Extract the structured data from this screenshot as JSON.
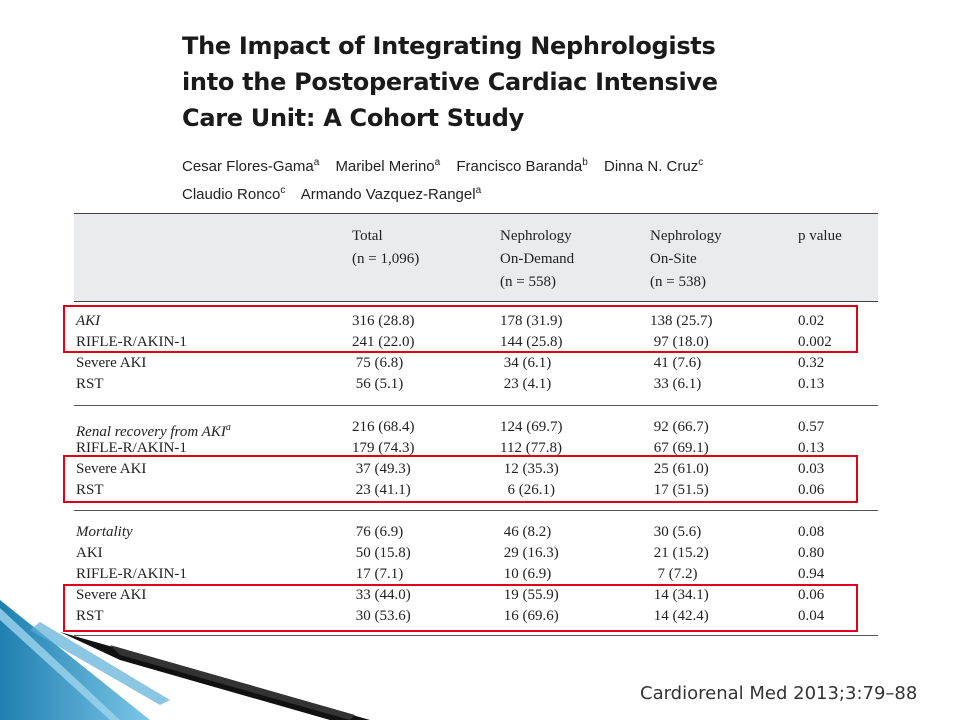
{
  "title_lines": [
    "The Impact of Integrating Nephrologists",
    "into the Postoperative Cardiac Intensive",
    "Care Unit: A Cohort Study"
  ],
  "authors": {
    "line1": [
      {
        "name": "Cesar Flores-Gama",
        "sup": "a"
      },
      {
        "name": "Maribel Merino",
        "sup": "a"
      },
      {
        "name": "Francisco Baranda",
        "sup": "b"
      },
      {
        "name": "Dinna N. Cruz",
        "sup": "c"
      }
    ],
    "line2": [
      {
        "name": "Claudio Ronco",
        "sup": "c"
      },
      {
        "name": "Armando Vazquez-Rangel",
        "sup": "a"
      }
    ]
  },
  "table": {
    "headers": {
      "total": [
        "Total",
        "(n = 1,096)"
      ],
      "on_demand": [
        "Nephrology",
        "On-Demand",
        "(n = 558)"
      ],
      "on_site": [
        "Nephrology",
        "On-Site",
        "(n = 538)"
      ],
      "p": [
        "p value"
      ]
    },
    "sections": [
      {
        "rows": [
          {
            "label": "AKI",
            "total": "316 (28.8)",
            "on_demand": "178 (31.9)",
            "on_site": "138 (25.7)",
            "p": "0.02"
          },
          {
            "label": "RIFLE-R/AKIN-1",
            "total": "241 (22.0)",
            "on_demand": "144 (25.8)",
            "on_site": " 97 (18.0)",
            "p": "0.002"
          },
          {
            "label": "Severe AKI",
            "total": " 75 (6.8)",
            "on_demand": " 34 (6.1)",
            "on_site": " 41 (7.6)",
            "p": "0.32"
          },
          {
            "label": "RST",
            "total": " 56 (5.1)",
            "on_demand": " 23 (4.1)",
            "on_site": " 33 (6.1)",
            "p": "0.13"
          }
        ]
      },
      {
        "rows": [
          {
            "label": "Renal recovery from AKI",
            "label_sup": "a",
            "total": "216 (68.4)",
            "on_demand": "124 (69.7)",
            "on_site": " 92 (66.7)",
            "p": "0.57"
          },
          {
            "label": "RIFLE-R/AKIN-1",
            "total": "179 (74.3)",
            "on_demand": "112 (77.8)",
            "on_site": " 67 (69.1)",
            "p": "0.13"
          },
          {
            "label": "Severe AKI",
            "total": " 37 (49.3)",
            "on_demand": " 12 (35.3)",
            "on_site": " 25 (61.0)",
            "p": "0.03"
          },
          {
            "label": "RST",
            "total": " 23 (41.1)",
            "on_demand": "  6 (26.1)",
            "on_site": " 17 (51.5)",
            "p": "0.06"
          }
        ]
      },
      {
        "rows": [
          {
            "label": "Mortality",
            "total": " 76 (6.9)",
            "on_demand": " 46 (8.2)",
            "on_site": " 30 (5.6)",
            "p": "0.08"
          },
          {
            "label": "AKI",
            "total": " 50 (15.8)",
            "on_demand": " 29 (16.3)",
            "on_site": " 21 (15.2)",
            "p": "0.80"
          },
          {
            "label": "RIFLE-R/AKIN-1",
            "total": " 17 (7.1)",
            "on_demand": " 10 (6.9)",
            "on_site": "  7 (7.2)",
            "p": "0.94"
          },
          {
            "label": "Severe AKI",
            "total": " 33 (44.0)",
            "on_demand": " 19 (55.9)",
            "on_site": " 14 (34.1)",
            "p": "0.06"
          },
          {
            "label": "RST",
            "total": " 30 (53.6)",
            "on_demand": " 16 (69.6)",
            "on_site": " 14 (42.4)",
            "p": "0.04"
          }
        ]
      }
    ]
  },
  "citation": "Cardiorenal Med 2013;3:79–88",
  "colors": {
    "highlight": "#e0001a",
    "header_bg": "#e9ebef",
    "decor_blue": "#1f7fb0"
  }
}
